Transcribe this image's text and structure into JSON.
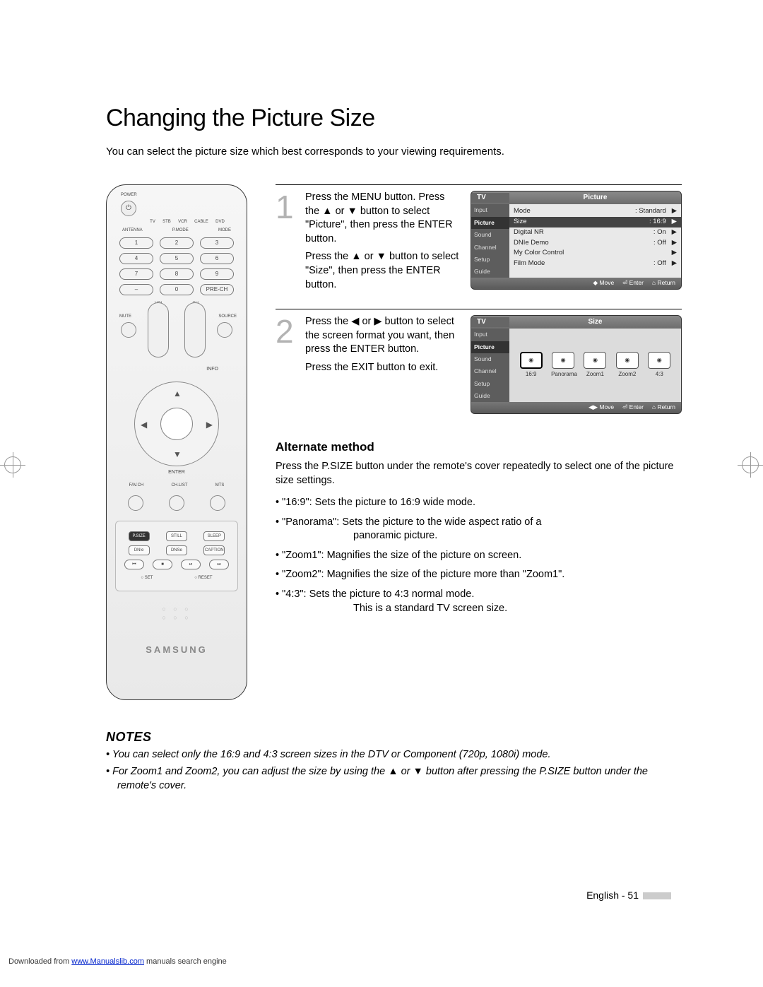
{
  "title": "Changing the Picture Size",
  "intro": "You can select the picture size which best corresponds to your viewing requirements.",
  "steps": [
    {
      "num": "1",
      "paras": [
        "Press the MENU button. Press the ▲ or ▼ button to select \"Picture\", then press the ENTER button.",
        "Press the ▲ or ▼ button to select \"Size\", then press the ENTER button."
      ]
    },
    {
      "num": "2",
      "paras": [
        "Press the ◀ or ▶ button to select the screen format you want, then press the ENTER button.",
        "Press the EXIT button to exit."
      ]
    }
  ],
  "osd1": {
    "tv": "TV",
    "title": "Picture",
    "side": [
      "Input",
      "Picture",
      "Sound",
      "Channel",
      "Setup",
      "Guide"
    ],
    "activeSide": "Picture",
    "lines": [
      {
        "k": "Mode",
        "v": ": Standard",
        "a": "▶"
      },
      {
        "k": "Size",
        "v": ": 16:9",
        "a": "▶",
        "hl": true
      },
      {
        "k": "Digital NR",
        "v": ": On",
        "a": "▶"
      },
      {
        "k": "DNIe Demo",
        "v": ": Off",
        "a": "▶"
      },
      {
        "k": "My Color Control",
        "v": "",
        "a": "▶"
      },
      {
        "k": "Film Mode",
        "v": ": Off",
        "a": "▶"
      }
    ],
    "foot": [
      "◆ Move",
      "⏎ Enter",
      "⌂ Return"
    ]
  },
  "osd2": {
    "tv": "TV",
    "title": "Size",
    "side": [
      "Input",
      "Picture",
      "Sound",
      "Channel",
      "Setup",
      "Guide"
    ],
    "activeSide": "Picture",
    "modes": [
      "16:9",
      "Panorama",
      "Zoom1",
      "Zoom2",
      "4:3"
    ],
    "selected": "16:9",
    "foot": [
      "◀▶ Move",
      "⏎ Enter",
      "⌂ Return"
    ]
  },
  "alt": {
    "heading": "Alternate method",
    "desc": "Press the P.SIZE button under the remote's cover repeatedly to select one of the picture size settings.",
    "options": [
      {
        "t": "\"16:9\": Sets the picture to 16:9 wide mode."
      },
      {
        "t": "\"Panorama\": Sets the picture to the wide aspect ratio of a",
        "s": "panoramic picture."
      },
      {
        "t": "\"Zoom1\": Magnifies the size of the picture on screen."
      },
      {
        "t": "\"Zoom2\": Magnifies the size of the picture more than \"Zoom1\"."
      },
      {
        "t": "\"4:3\": Sets the picture to 4:3 normal mode.",
        "s": "This is a standard TV screen size."
      }
    ]
  },
  "notesHeading": "NOTES",
  "notes": [
    "You can select only the 16:9 and 4:3 screen sizes in the DTV or Component (720p, 1080i) mode.",
    "For Zoom1 and Zoom2, you can adjust the size by using the ▲ or ▼ button after pressing the P.SIZE button under the remote's cover."
  ],
  "page": "English - 51",
  "download": {
    "pre": "Downloaded from ",
    "link": "www.Manualslib.com",
    "post": " manuals search engine"
  },
  "remote": {
    "power": "⏻",
    "modes": [
      "TV",
      "STB",
      "VCR",
      "CABLE",
      "DVD"
    ],
    "row1": [
      "ANTENNA",
      "P.MODE",
      "MODE"
    ],
    "nums": [
      [
        "1",
        "2",
        "3"
      ],
      [
        "4",
        "5",
        "6"
      ],
      [
        "7",
        "8",
        "9"
      ],
      [
        "–",
        "0",
        "PRE-CH"
      ]
    ],
    "mute": "MUTE",
    "source": "SOURCE",
    "vol": "VOL",
    "ch": "CH",
    "info": "INFO",
    "enter": "ENTER",
    "fav": "FAV.CH",
    "chlist": "CH.LIST",
    "mts": "MTS",
    "lower1": [
      "P.SIZE",
      "STILL",
      "SLEEP"
    ],
    "lower2": [
      "DNIe",
      "DNSe",
      "CAPTION"
    ],
    "trans": [
      "⏮",
      "■",
      "⏯",
      "⏭"
    ],
    "setreset": [
      "○ SET",
      "○ RESET"
    ],
    "brand": "SAMSUNG"
  }
}
